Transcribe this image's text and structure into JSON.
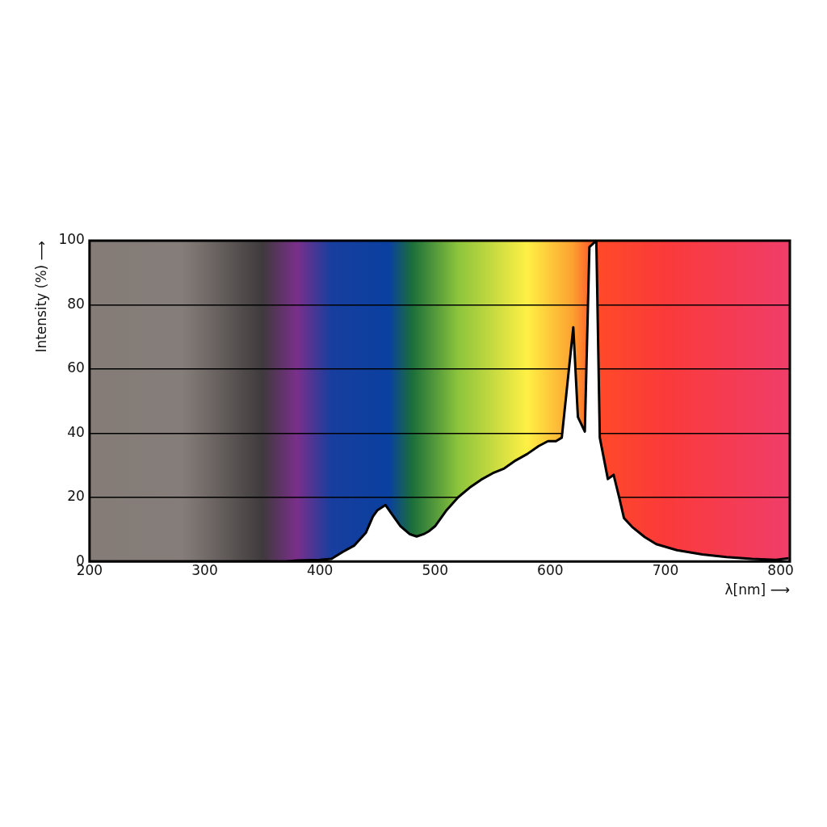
{
  "chart_data": {
    "type": "area",
    "xlabel": "λ[nm] ⟶",
    "ylabel": "Intensity (%) ⟶",
    "x": [
      200,
      370,
      380,
      400,
      410,
      420,
      430,
      440,
      446,
      450,
      457,
      462,
      470,
      478,
      484,
      490,
      495,
      500,
      510,
      520,
      530,
      540,
      550,
      560,
      570,
      580,
      590,
      598,
      605,
      610,
      620,
      624,
      630,
      634,
      640,
      643,
      650,
      655,
      660,
      664,
      671,
      682,
      692,
      710,
      732,
      753,
      775,
      796,
      807
    ],
    "series": [
      {
        "color": "#ffffff",
        "values": [
          0,
          0,
          0.3,
          0.5,
          0.8,
          3,
          5,
          9,
          14,
          16,
          17.6,
          15,
          11,
          8.5,
          7.8,
          8.5,
          9.5,
          11,
          16,
          20,
          23,
          25.5,
          27.5,
          29,
          31.5,
          33.5,
          36,
          37.5,
          37.5,
          38.6,
          73,
          45,
          40.5,
          98,
          100,
          38.6,
          25.7,
          27,
          19.7,
          13.5,
          10.8,
          7.6,
          5.4,
          3.5,
          2.2,
          1.4,
          0.8,
          0.5,
          1
        ]
      }
    ],
    "xlim": [
      200,
      808
    ],
    "xticks": [
      200,
      300,
      400,
      500,
      600,
      700,
      800
    ],
    "ylim": [
      0,
      100
    ],
    "yticks": [
      0,
      20,
      40,
      60,
      80,
      100
    ],
    "grid": "y",
    "legend": false
  }
}
